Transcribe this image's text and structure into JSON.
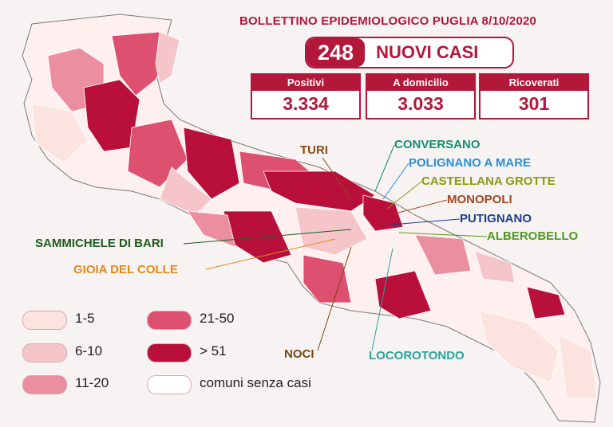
{
  "header": {
    "title": "BOLLETTINO EPIDEMIOLOGICO PUGLIA 8/10/2020",
    "new_cases_value": "248",
    "new_cases_label": "NUOVI CASI"
  },
  "stats": [
    {
      "label": "Positivi",
      "value": "3.334"
    },
    {
      "label": "A domicilio",
      "value": "3.033"
    },
    {
      "label": "Ricoverati",
      "value": "301"
    }
  ],
  "colors": {
    "accent": "#b3173a",
    "class_1_5": "#fbe3df",
    "class_6_10": "#f6c5ca",
    "class_11_20": "#ea8ea0",
    "class_21_50": "#dd506f",
    "class_over_51": "#b8103a",
    "no_cases": "#ffffff"
  },
  "towns": [
    {
      "name": "TURI",
      "color": "#8a4b14"
    },
    {
      "name": "CONVERSANO",
      "color": "#13906f"
    },
    {
      "name": "POLIGNANO A MARE",
      "color": "#2a8fd6"
    },
    {
      "name": "CASTELLANA GROTTE",
      "color": "#8a9a12"
    },
    {
      "name": "MONOPOLI",
      "color": "#a5461e"
    },
    {
      "name": "PUTIGNANO",
      "color": "#1c3d86"
    },
    {
      "name": "ALBEROBELLO",
      "color": "#4f9a1e"
    },
    {
      "name": "SAMMICHELE DI BARI",
      "color": "#1f5a1f"
    },
    {
      "name": "GIOIA DEL COLLE",
      "color": "#e08a1c"
    },
    {
      "name": "NOCI",
      "color": "#7a4614"
    },
    {
      "name": "LOCOROTONDO",
      "color": "#2aa39a"
    }
  ],
  "legend": [
    {
      "label": "1-5",
      "color": "#fbe3df"
    },
    {
      "label": "6-10",
      "color": "#f6c5ca"
    },
    {
      "label": "11-20",
      "color": "#ea8ea0"
    },
    {
      "label": "21-50",
      "color": "#dd506f"
    },
    {
      "label": "> 51",
      "color": "#b8103a"
    },
    {
      "label": "comuni senza casi",
      "color": "#ffffff"
    }
  ]
}
